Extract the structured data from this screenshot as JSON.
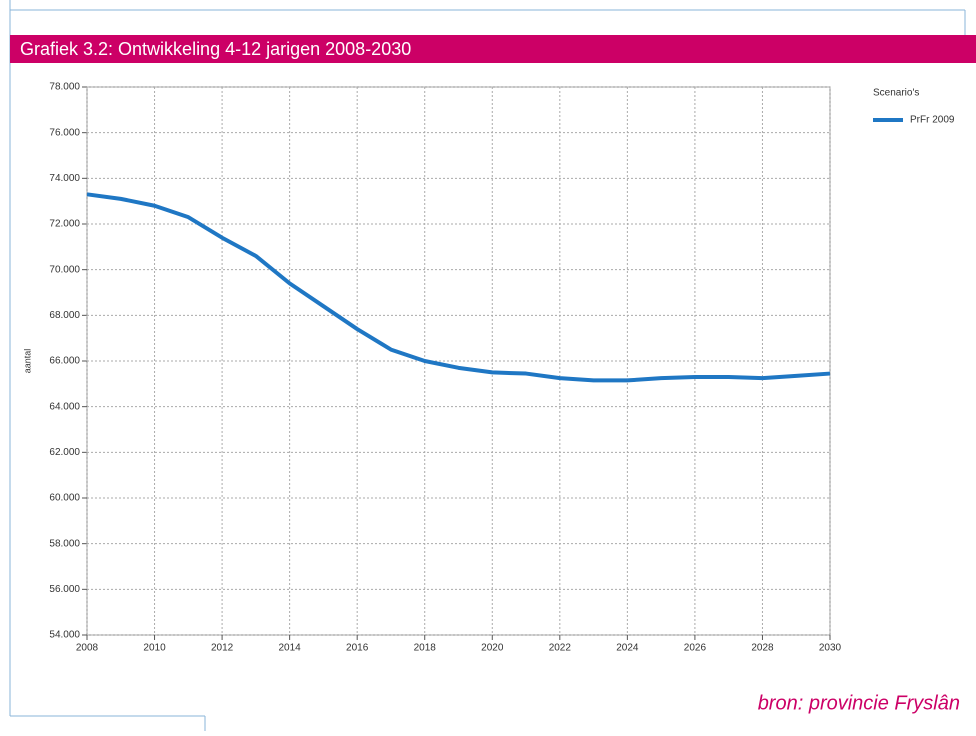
{
  "chart_data": {
    "type": "line",
    "title": "Grafiek 3.2: Ontwikkeling 4-12 jarigen 2008-2030",
    "y_label": "aantal",
    "legend_title": "Scenario's",
    "source": "bron: provincie Fryslân",
    "x": [
      2008,
      2009,
      2010,
      2011,
      2012,
      2013,
      2014,
      2015,
      2016,
      2017,
      2018,
      2019,
      2020,
      2021,
      2022,
      2023,
      2024,
      2025,
      2026,
      2027,
      2028,
      2029,
      2030
    ],
    "series": [
      {
        "name": "PrFr 2009",
        "color": "#1f77c4",
        "values": [
          73300,
          73100,
          72800,
          72300,
          71400,
          70600,
          69400,
          68400,
          67400,
          66500,
          66000,
          65700,
          65500,
          65450,
          65250,
          65150,
          65150,
          65250,
          65300,
          65300,
          65250,
          65350,
          65450
        ]
      }
    ],
    "xlim": [
      2008,
      2030
    ],
    "xticks": [
      2008,
      2010,
      2012,
      2014,
      2016,
      2018,
      2020,
      2022,
      2024,
      2026,
      2028,
      2030
    ],
    "ylim": [
      54000,
      78000
    ],
    "yticks": [
      {
        "value": 54000,
        "label": "54.000"
      },
      {
        "value": 56000,
        "label": "56.000"
      },
      {
        "value": 58000,
        "label": "58.000"
      },
      {
        "value": 60000,
        "label": "60.000"
      },
      {
        "value": 62000,
        "label": "62.000"
      },
      {
        "value": 64000,
        "label": "64.000"
      },
      {
        "value": 66000,
        "label": "66.000"
      },
      {
        "value": 68000,
        "label": "68.000"
      },
      {
        "value": 70000,
        "label": "70.000"
      },
      {
        "value": 72000,
        "label": "72.000"
      },
      {
        "value": 74000,
        "label": "74.000"
      },
      {
        "value": 76000,
        "label": "76.000"
      },
      {
        "value": 78000,
        "label": "78.000"
      }
    ],
    "grid": true,
    "legend": "upper right"
  }
}
